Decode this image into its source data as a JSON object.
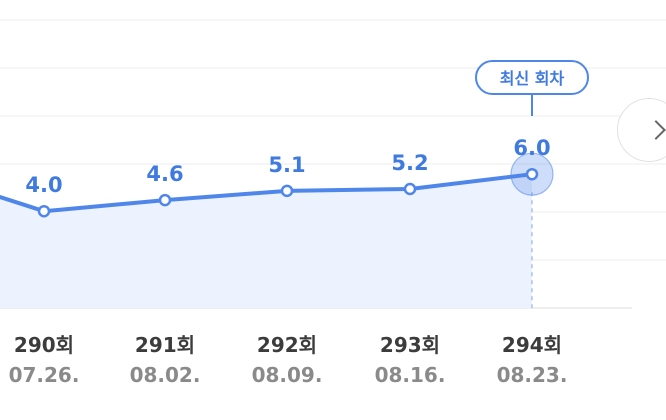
{
  "chart_data": {
    "type": "line",
    "categories": [
      "290회",
      "291회",
      "292회",
      "293회",
      "294회"
    ],
    "dates": [
      "07.26.",
      "08.02.",
      "08.09.",
      "08.16.",
      "08.23."
    ],
    "series": [
      {
        "values": [
          4.0,
          4.6,
          5.1,
          5.2,
          6.0
        ]
      }
    ],
    "value_labels": [
      "4.0",
      "4.6",
      "5.1",
      "5.2",
      "6.0"
    ],
    "latest_badge": "최신 회차",
    "ylim": [
      0,
      8
    ],
    "grid": true,
    "colors": {
      "line": "#4f86ea",
      "area": "#edf3fe",
      "label": "#3f7ae0"
    }
  },
  "controls": {
    "next_icon": "chevron-right-icon"
  }
}
